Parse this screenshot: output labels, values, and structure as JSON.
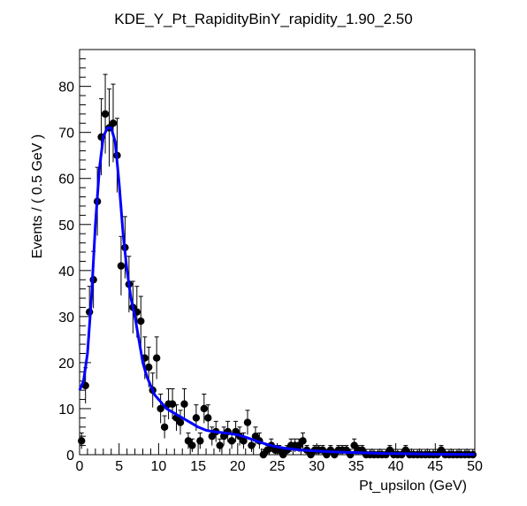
{
  "chart_data": {
    "type": "scatter",
    "title": "KDE_Y_Pt_RapidityBinY_rapidity_1.90_2.50",
    "xlabel": "Pt_upsilon (GeV)",
    "ylabel": "Events / ( 0.5 GeV )",
    "xlim": [
      0,
      50
    ],
    "ylim": [
      0,
      88
    ],
    "x_ticks": [
      0,
      5,
      10,
      15,
      20,
      25,
      30,
      35,
      40,
      45,
      50
    ],
    "y_ticks": [
      0,
      10,
      20,
      30,
      40,
      50,
      60,
      70,
      80
    ],
    "grid": false,
    "legend": "none",
    "marker_color": "#000000",
    "curve_color": "#0000ff",
    "series": [
      {
        "type": "points-with-errors",
        "x": [
          0.25,
          0.75,
          1.25,
          1.75,
          2.25,
          2.75,
          3.25,
          3.75,
          4.25,
          4.75,
          5.25,
          5.75,
          6.25,
          6.75,
          7.25,
          7.75,
          8.25,
          8.75,
          9.25,
          9.75,
          10.25,
          10.75,
          11.25,
          11.75,
          12.25,
          12.75,
          13.25,
          13.75,
          14.25,
          14.75,
          15.25,
          15.75,
          16.25,
          16.75,
          17.25,
          17.75,
          18.25,
          18.75,
          19.25,
          19.75,
          20.25,
          20.75,
          21.25,
          21.75,
          22.25,
          22.75,
          23.25,
          23.75,
          24.25,
          24.75,
          25.25,
          25.75,
          26.25,
          26.75,
          27.25,
          27.75,
          28.25,
          28.75,
          29.25,
          29.75,
          30.25,
          30.75,
          31.25,
          31.75,
          32.25,
          32.75,
          33.25,
          33.75,
          34.25,
          34.75,
          35.25,
          35.75,
          36.25,
          36.75,
          37.25,
          37.75,
          38.25,
          38.75,
          39.25,
          39.75,
          40.25,
          40.75,
          41.25,
          41.75,
          42.25,
          42.75,
          43.25,
          43.75,
          44.25,
          44.75,
          45.25,
          45.75,
          46.25,
          46.75,
          47.25,
          47.75,
          48.25,
          48.75,
          49.25,
          49.75
        ],
        "y": [
          3,
          15,
          31,
          38,
          55,
          69,
          74,
          71,
          72,
          65,
          41,
          45,
          37,
          32,
          31,
          29,
          21,
          19,
          14,
          21,
          10,
          6,
          11,
          11,
          8,
          7,
          11,
          3,
          2,
          8,
          3,
          10,
          8,
          4,
          5,
          2,
          4,
          5,
          3,
          5,
          4,
          3,
          7,
          2,
          4,
          3,
          0,
          1,
          2,
          1,
          1,
          0,
          1,
          2,
          2,
          2,
          3,
          1,
          0,
          1,
          1,
          1,
          0,
          1,
          0,
          1,
          1,
          1,
          0,
          2,
          1,
          1,
          0,
          0,
          0,
          0,
          0,
          0,
          1,
          0,
          0,
          0,
          1,
          0,
          0,
          0,
          0,
          0,
          0,
          0,
          0,
          1,
          0,
          0,
          0,
          0,
          0,
          0,
          0,
          0
        ]
      },
      {
        "type": "line",
        "x": [
          0,
          0.5,
          1,
          1.5,
          2,
          2.5,
          3,
          3.5,
          4,
          4.5,
          5,
          5.5,
          6,
          6.5,
          7,
          7.5,
          8,
          8.5,
          9,
          9.5,
          10,
          11,
          12,
          13,
          14,
          15,
          16,
          17,
          18,
          19,
          20,
          21,
          22,
          23,
          24,
          25,
          26,
          27,
          28,
          30,
          32,
          34,
          36,
          38,
          40,
          42,
          44,
          46,
          48,
          50
        ],
        "y": [
          14,
          16,
          22,
          34,
          50,
          62,
          69,
          71,
          71,
          68,
          59,
          48,
          40,
          34,
          30,
          25,
          20,
          17,
          15,
          13,
          12,
          10,
          9,
          8,
          7,
          6,
          5.3,
          5,
          4.8,
          4.6,
          4.3,
          3.8,
          3.2,
          2.6,
          2.1,
          1.7,
          1.4,
          1.2,
          1.0,
          0.8,
          0.6,
          0.5,
          0.4,
          0.3,
          0.25,
          0.2,
          0.15,
          0.1,
          0.08,
          0.05
        ]
      }
    ]
  }
}
